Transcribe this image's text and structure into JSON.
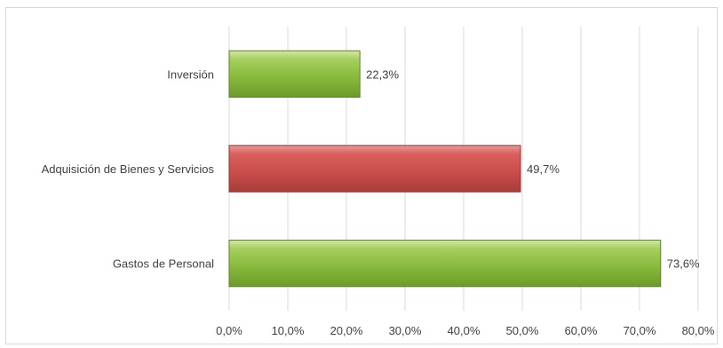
{
  "chart_data": {
    "type": "bar",
    "orientation": "horizontal",
    "categories": [
      "Inversión",
      "Adquisición de Bienes y Servicios",
      "Gastos de Personal"
    ],
    "values": [
      22.3,
      49.7,
      73.6
    ],
    "data_labels": [
      "22,3%",
      "49,7%",
      "73,6%"
    ],
    "bar_colors": [
      "#9BBB59",
      "#C0504D",
      "#9BBB59"
    ],
    "xlim": [
      0,
      80
    ],
    "x_ticks": [
      0,
      10,
      20,
      30,
      40,
      50,
      60,
      70,
      80
    ],
    "x_tick_labels": [
      "0,0%",
      "10,0%",
      "20,0%",
      "30,0%",
      "40,0%",
      "50,0%",
      "60,0%",
      "70,0%",
      "80,0%"
    ],
    "grid": true,
    "legend": "none",
    "title": "",
    "xlabel": "",
    "ylabel": ""
  }
}
